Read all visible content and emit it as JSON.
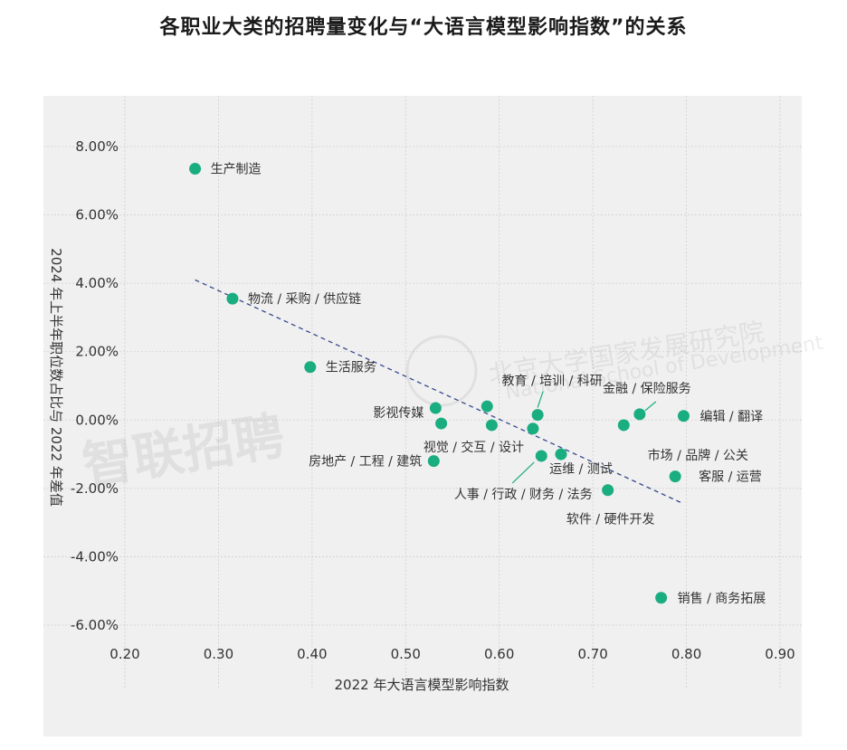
{
  "title": "各职业大类的招聘量变化与“大语言模型影响指数”的关系",
  "watermark": {
    "brand": "智联招聘",
    "org_cn": "北京大学国家发展研究院",
    "org_en": "National School of Development"
  },
  "colors": {
    "point": "#1aad80",
    "trend": "#3a4a8c",
    "panel": "#f0f0f0",
    "grid": "#cfcfcf"
  },
  "chart_data": {
    "type": "scatter",
    "title": "各职业大类的招聘量变化与“大语言模型影响指数”的关系",
    "xlabel": "2022 年大语言模型影响指数",
    "ylabel": "2024 年上半年职位数占比与 2022 年差值",
    "xlim": [
      0.2,
      0.9
    ],
    "ylim": [
      -6.0,
      8.0
    ],
    "x_ticks": [
      0.2,
      0.3,
      0.4,
      0.5,
      0.6,
      0.7,
      0.8,
      0.9
    ],
    "x_tick_labels": [
      "0.20",
      "0.30",
      "0.40",
      "0.50",
      "0.60",
      "0.70",
      "0.80",
      "0.90"
    ],
    "y_ticks": [
      -6,
      -4,
      -2,
      0,
      2,
      4,
      6,
      8
    ],
    "y_tick_labels": [
      "-6.00%",
      "-4.00%",
      "-2.00%",
      "0.00%",
      "2.00%",
      "4.00%",
      "6.00%",
      "8.00%"
    ],
    "grid": true,
    "points": [
      {
        "label": "生产制造",
        "x": 0.275,
        "y": 7.35
      },
      {
        "label": "物流 / 采购 / 供应链",
        "x": 0.315,
        "y": 3.55
      },
      {
        "label": "生活服务",
        "x": 0.398,
        "y": 1.55
      },
      {
        "label": "影视传媒",
        "x": 0.532,
        "y": 0.35
      },
      {
        "label": "",
        "x": 0.538,
        "y": -0.1
      },
      {
        "label": "房地产 / 工程 / 建筑",
        "x": 0.53,
        "y": -1.2
      },
      {
        "label": "",
        "x": 0.587,
        "y": 0.4
      },
      {
        "label": "视觉 / 交互 / 设计",
        "x": 0.592,
        "y": -0.15
      },
      {
        "label": "",
        "x": 0.636,
        "y": -0.25
      },
      {
        "label": "教育 / 培训 / 科研",
        "x": 0.641,
        "y": 0.15
      },
      {
        "label": "人事 / 行政 / 财务 / 法务",
        "x": 0.645,
        "y": -1.05
      },
      {
        "label": "运维 / 测试",
        "x": 0.666,
        "y": -1.0
      },
      {
        "label": "软件 / 硬件开发",
        "x": 0.716,
        "y": -2.05
      },
      {
        "label": "市场 / 品牌 / 公关",
        "x": 0.733,
        "y": -0.15
      },
      {
        "label": "金融 / 保险服务",
        "x": 0.75,
        "y": 0.17
      },
      {
        "label": "客服 / 运营",
        "x": 0.788,
        "y": -1.65
      },
      {
        "label": "编辑 / 翻译",
        "x": 0.797,
        "y": 0.12
      },
      {
        "label": "销售 / 商务拓展",
        "x": 0.773,
        "y": -5.2
      }
    ],
    "trendline": {
      "x": [
        0.275,
        0.797
      ],
      "y": [
        4.1,
        -2.45
      ],
      "style": "dashed"
    }
  }
}
